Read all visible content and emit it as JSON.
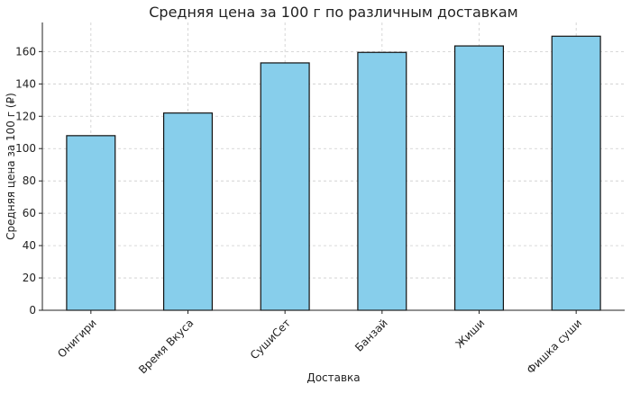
{
  "chart_data": {
    "type": "bar",
    "title": "Средняя цена за 100 г по различным доставкам",
    "x_label": "Доставка",
    "y_label": "Средняя цена за 100 г (₽)",
    "categories": [
      "Онигири",
      "Время Вкуса",
      "СушиСет",
      "Банзай",
      "Жиши",
      "Фишка суши"
    ],
    "values": [
      108,
      122,
      153,
      159.5,
      163.5,
      169.5
    ],
    "color": "#87ceeb",
    "ylim": [
      0,
      178
    ],
    "yticks": [
      0,
      20,
      40,
      60,
      80,
      100,
      120,
      140,
      160
    ],
    "grid": true
  }
}
